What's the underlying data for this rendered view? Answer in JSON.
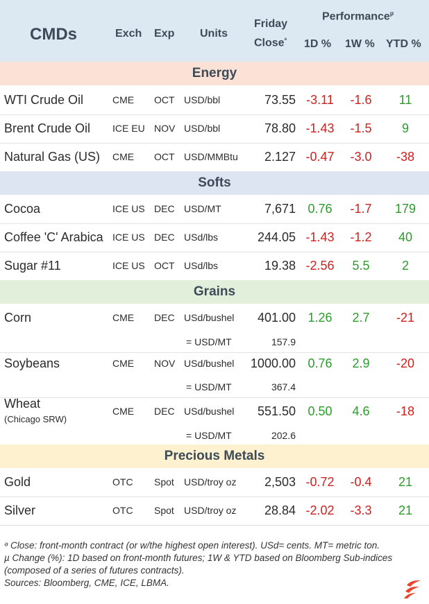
{
  "header": {
    "title": "CMDs",
    "exch": "Exch",
    "exp": "Exp",
    "units": "Units",
    "close_line1": "Friday",
    "close_line2": "Close",
    "close_mark": "ᵊ",
    "performance": "Performance",
    "perf_mark": "µ",
    "d1": "1D %",
    "w1": "1W %",
    "ytd": "YTD %"
  },
  "sections": {
    "energy": "Energy",
    "softs": "Softs",
    "grains": "Grains",
    "metals": "Precious Metals"
  },
  "rows": {
    "wti": {
      "name": "WTI Crude Oil",
      "exch": "CME",
      "exp": "OCT",
      "units": "USD/bbl",
      "close": "73.55",
      "d1": "-3.11",
      "w1": "-1.6",
      "ytd": "11"
    },
    "brent": {
      "name": "Brent Crude Oil",
      "exch": "ICE EU",
      "exp": "NOV",
      "units": "USD/bbl",
      "close": "78.80",
      "d1": "-1.43",
      "w1": "-1.5",
      "ytd": "9"
    },
    "natgas": {
      "name": "Natural Gas (US)",
      "exch": "CME",
      "exp": "OCT",
      "units": "USD/MMBtu",
      "close": "2.127",
      "d1": "-0.47",
      "w1": "-3.0",
      "ytd": "-38"
    },
    "cocoa": {
      "name": "Cocoa",
      "exch": "ICE US",
      "exp": "DEC",
      "units": "USD/MT",
      "close": "7,671",
      "d1": "0.76",
      "w1": "-1.7",
      "ytd": "179"
    },
    "coffee": {
      "name": "Coffee 'C' Arabica",
      "exch": "ICE US",
      "exp": "DEC",
      "units": "USd/lbs",
      "close": "244.05",
      "d1": "-1.43",
      "w1": "-1.2",
      "ytd": "40"
    },
    "sugar": {
      "name": "Sugar #11",
      "exch": "ICE US",
      "exp": "OCT",
      "units": "USd/lbs",
      "close": "19.38",
      "d1": "-2.56",
      "w1": "5.5",
      "ytd": "2"
    },
    "corn": {
      "name": "Corn",
      "exch": "CME",
      "exp": "DEC",
      "units": "USd/bushel",
      "close": "401.00",
      "d1": "1.26",
      "w1": "2.7",
      "ytd": "-21",
      "conv_units": "= USD/MT",
      "conv_value": "157.9"
    },
    "soybeans": {
      "name": "Soybeans",
      "exch": "CME",
      "exp": "NOV",
      "units": "USd/bushel",
      "close": "1000.00",
      "d1": "0.76",
      "w1": "2.9",
      "ytd": "-20",
      "conv_units": "= USD/MT",
      "conv_value": "367.4"
    },
    "wheat": {
      "name": "Wheat",
      "sub": "(Chicago SRW)",
      "exch": "CME",
      "exp": "DEC",
      "units": "USd/bushel",
      "close": "551.50",
      "d1": "0.50",
      "w1": "4.6",
      "ytd": "-18",
      "conv_units": "= USD/MT",
      "conv_value": "202.6"
    },
    "gold": {
      "name": "Gold",
      "exch": "OTC",
      "exp": "Spot",
      "units": "USD/troy oz",
      "close": "2,503",
      "d1": "-0.72",
      "w1": "-0.4",
      "ytd": "21"
    },
    "silver": {
      "name": "Silver",
      "exch": "OTC",
      "exp": "Spot",
      "units": "USD/troy oz",
      "close": "28.84",
      "d1": "-2.02",
      "w1": "-3.3",
      "ytd": "21"
    }
  },
  "notes": {
    "line1": "ᵊ Close: front-month contract (or w/the highest open interest). USd= cents. MT= metric ton.",
    "line2": "µ Change (%): 1D based on front-month futures; 1W & YTD based on Bloomberg Sub-indices",
    "line3": "(composed of a series of futures contracts).",
    "line4": "Sources: Bloomberg, CME, ICE, LBMA."
  },
  "colors": {
    "negative": "#d0201d",
    "positive": "#2d9a2d",
    "logo": "#e8452c"
  }
}
